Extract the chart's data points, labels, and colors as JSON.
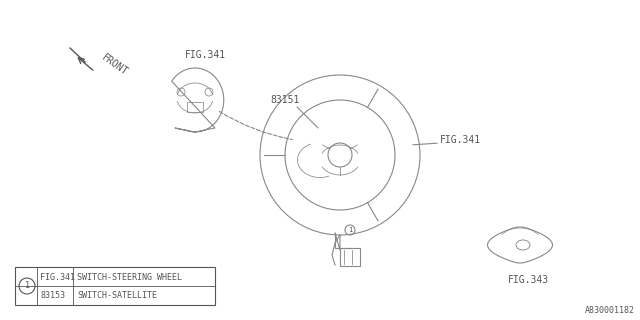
{
  "bg_color": "#ffffff",
  "line_color": "#888888",
  "text_color": "#555555",
  "title_text": "",
  "watermark": "A830001182",
  "front_label": "FRONT",
  "labels": {
    "fig341_top": "FIG.341",
    "fig341_right": "FIG.341",
    "fig343": "FIG.343",
    "part83151": "83151"
  },
  "legend": {
    "circle_label": "1",
    "row1_part": "FIG.341",
    "row1_desc": "SWITCH-STEERING WHEEL",
    "row2_part": "83153",
    "row2_desc": "SWITCH-SATELLITE"
  }
}
